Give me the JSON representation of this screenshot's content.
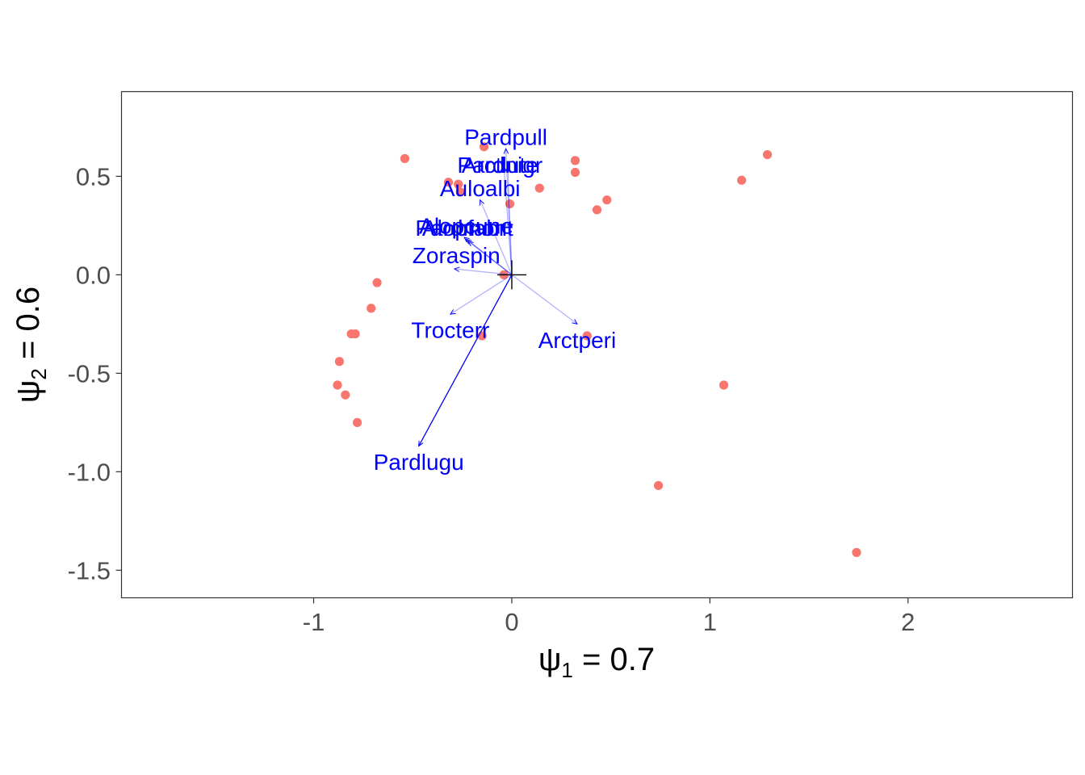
{
  "chart_data": {
    "type": "scatter",
    "title": "",
    "xlabel": {
      "symbol": "ψ",
      "sub": "1",
      "rest": " = 0.7"
    },
    "ylabel": {
      "symbol": "ψ",
      "sub": "2",
      "rest": " = 0.6"
    },
    "xlim": [
      -1.97,
      2.83
    ],
    "ylim": [
      -1.64,
      0.93
    ],
    "x_ticks": [
      {
        "value": -1,
        "label": "-1"
      },
      {
        "value": 0,
        "label": "0"
      },
      {
        "value": 1,
        "label": "1"
      },
      {
        "value": 2,
        "label": "2"
      }
    ],
    "y_ticks": [
      {
        "value": 0.5,
        "label": "0.5"
      },
      {
        "value": 0.0,
        "label": "0.0"
      },
      {
        "value": -0.5,
        "label": "-0.5"
      },
      {
        "value": -1.0,
        "label": "-1.0"
      },
      {
        "value": -1.5,
        "label": "-1.5"
      }
    ],
    "grid": false,
    "colors": {
      "points": "#f8766d",
      "arrows": "#0000ff",
      "center": "#000000",
      "panel_border": "#333333"
    },
    "points": [
      {
        "x": -0.54,
        "y": 0.59
      },
      {
        "x": -0.14,
        "y": 0.65
      },
      {
        "x": -0.32,
        "y": 0.47
      },
      {
        "x": -0.27,
        "y": 0.46
      },
      {
        "x": -0.26,
        "y": 0.42
      },
      {
        "x": -0.01,
        "y": 0.36
      },
      {
        "x": 0.14,
        "y": 0.44
      },
      {
        "x": 0.32,
        "y": 0.58
      },
      {
        "x": 0.32,
        "y": 0.52
      },
      {
        "x": 0.43,
        "y": 0.33
      },
      {
        "x": 0.48,
        "y": 0.38
      },
      {
        "x": 1.16,
        "y": 0.48
      },
      {
        "x": 1.29,
        "y": 0.61
      },
      {
        "x": -0.04,
        "y": 0.0
      },
      {
        "x": -0.68,
        "y": -0.04
      },
      {
        "x": -0.71,
        "y": -0.17
      },
      {
        "x": -0.81,
        "y": -0.3
      },
      {
        "x": -0.79,
        "y": -0.3
      },
      {
        "x": -0.87,
        "y": -0.44
      },
      {
        "x": -0.88,
        "y": -0.56
      },
      {
        "x": -0.84,
        "y": -0.61
      },
      {
        "x": -0.78,
        "y": -0.75
      },
      {
        "x": -0.15,
        "y": -0.31
      },
      {
        "x": 0.38,
        "y": -0.31
      },
      {
        "x": 1.07,
        "y": -0.56
      },
      {
        "x": 0.74,
        "y": -1.07
      },
      {
        "x": 1.74,
        "y": -1.41
      }
    ],
    "arrows": [
      {
        "name": "Pardpull",
        "x": -0.03,
        "y": 0.64,
        "label_x": -0.03,
        "label_y": 0.7,
        "strength": 0.3
      },
      {
        "name": "Pardnigr",
        "x": -0.04,
        "y": 0.55,
        "label_x": -0.06,
        "label_y": 0.56,
        "strength": 0.3
      },
      {
        "name": "Arctlute",
        "x": -0.02,
        "y": 0.55,
        "label_x": -0.06,
        "label_y": 0.56,
        "strength": 0.3
      },
      {
        "name": "Auloalbi",
        "x": -0.16,
        "y": 0.38,
        "label_x": -0.16,
        "label_y": 0.44,
        "strength": 0.3
      },
      {
        "name": "Pardmont",
        "x": -0.24,
        "y": 0.19,
        "label_x": -0.24,
        "label_y": 0.24,
        "strength": 0.3
      },
      {
        "name": "Alopcune",
        "x": -0.23,
        "y": 0.18,
        "label_x": -0.23,
        "label_y": 0.25,
        "strength": 0.3
      },
      {
        "name": "Alopfabr",
        "x": -0.22,
        "y": 0.17,
        "label_x": -0.24,
        "label_y": 0.24,
        "strength": 0.3
      },
      {
        "name": "Zoraspin",
        "x": -0.29,
        "y": 0.03,
        "label_x": -0.28,
        "label_y": 0.1,
        "strength": 0.3
      },
      {
        "name": "Trocterr",
        "x": -0.31,
        "y": -0.2,
        "label_x": -0.31,
        "label_y": -0.28,
        "strength": 0.3
      },
      {
        "name": "Arctperi",
        "x": 0.33,
        "y": -0.25,
        "label_x": 0.33,
        "label_y": -0.33,
        "strength": 0.3
      },
      {
        "name": "Pardlugu",
        "x": -0.47,
        "y": -0.87,
        "label_x": -0.47,
        "label_y": -0.95,
        "strength": 1.0
      }
    ]
  }
}
